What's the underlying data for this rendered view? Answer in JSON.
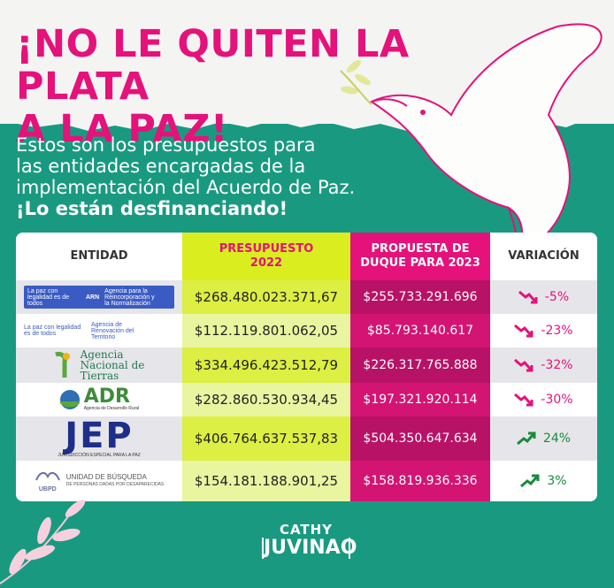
{
  "headline": "¡NO LE QUITEN LA PLATA\nA LA PAZ!",
  "headline_line1": "¡NO LE QUITEN LA PLATA",
  "headline_line2": "A LA PAZ!",
  "intro_line1": "Estos son los presupuestos para",
  "intro_line2": "las entidades encargadas de la",
  "intro_line3": "implementación del Acuerdo de Paz.",
  "intro_strong": "¡Lo están desfinanciando!",
  "table": {
    "headers": [
      "ENTIDAD",
      "PRESUPUESTO\n2022",
      "PROPUESTA DE\nDUQUE PARA 2023",
      "VARIACIÓN"
    ],
    "h1": "ENTIDAD",
    "h2a": "PRESUPUESTO",
    "h2b": "2022",
    "h3a": "PROPUESTA DE",
    "h3b": "DUQUE PARA 2023",
    "h4": "VARIACIÓN",
    "rows": [
      {
        "entity": "ARN",
        "logo_text_a": "La paz con legalidad es de todos",
        "logo_text_b": "ARN",
        "logo_text_c": "Agencia para la Reincorporación y la Normalización",
        "b2022": "$268.480.023.371,67",
        "b2023": "$255.733.291.696",
        "variation": "-5%",
        "trend": "down"
      },
      {
        "entity": "ART",
        "logo_text_a": "La paz con legalidad es de todos",
        "logo_text_b": "Agencia de Renovación del Territorio",
        "b2022": "$112.119.801.062,05",
        "b2023": "$85.793.140.617",
        "variation": "-23%",
        "trend": "down"
      },
      {
        "entity": "ANT",
        "logo_text_a": "Agencia",
        "logo_text_b": "Nacional de",
        "logo_text_c": "Tierras",
        "b2022": "$334.496.423.512,79",
        "b2023": "$226.317.765.888",
        "variation": "-32%",
        "trend": "down"
      },
      {
        "entity": "ADR",
        "logo_text_a": "ADR",
        "logo_text_b": "Agencia de Desarrollo Rural",
        "b2022": "$282.860.530.934,45",
        "b2023": "$197.321.920.114",
        "variation": "-30%",
        "trend": "down"
      },
      {
        "entity": "JEP",
        "logo_text_a": "JEP",
        "logo_text_b": "JURISDICCIÓN ESPECIAL PARA LA PAZ",
        "b2022": "$406.764.637.537,83",
        "b2023": "$504.350.647.634",
        "variation": "24%",
        "trend": "up"
      },
      {
        "entity": "UBPD",
        "logo_text_a": "UBPD",
        "logo_text_b": "UNIDAD DE BÚSQUEDA",
        "logo_text_c": "DE PERSONAS DADAS POR DESAPARECIDAS",
        "b2022": "$154.181.188.901,25",
        "b2023": "$158.819.936.336",
        "variation": "3%",
        "trend": "up"
      }
    ]
  },
  "signature_line1": "CATHY",
  "signature_line2": "JUVINAO",
  "colors": {
    "magenta": "#e4127a",
    "green": "#199a80",
    "lime": "#d9ed1f",
    "up": "#1a8a3a"
  }
}
